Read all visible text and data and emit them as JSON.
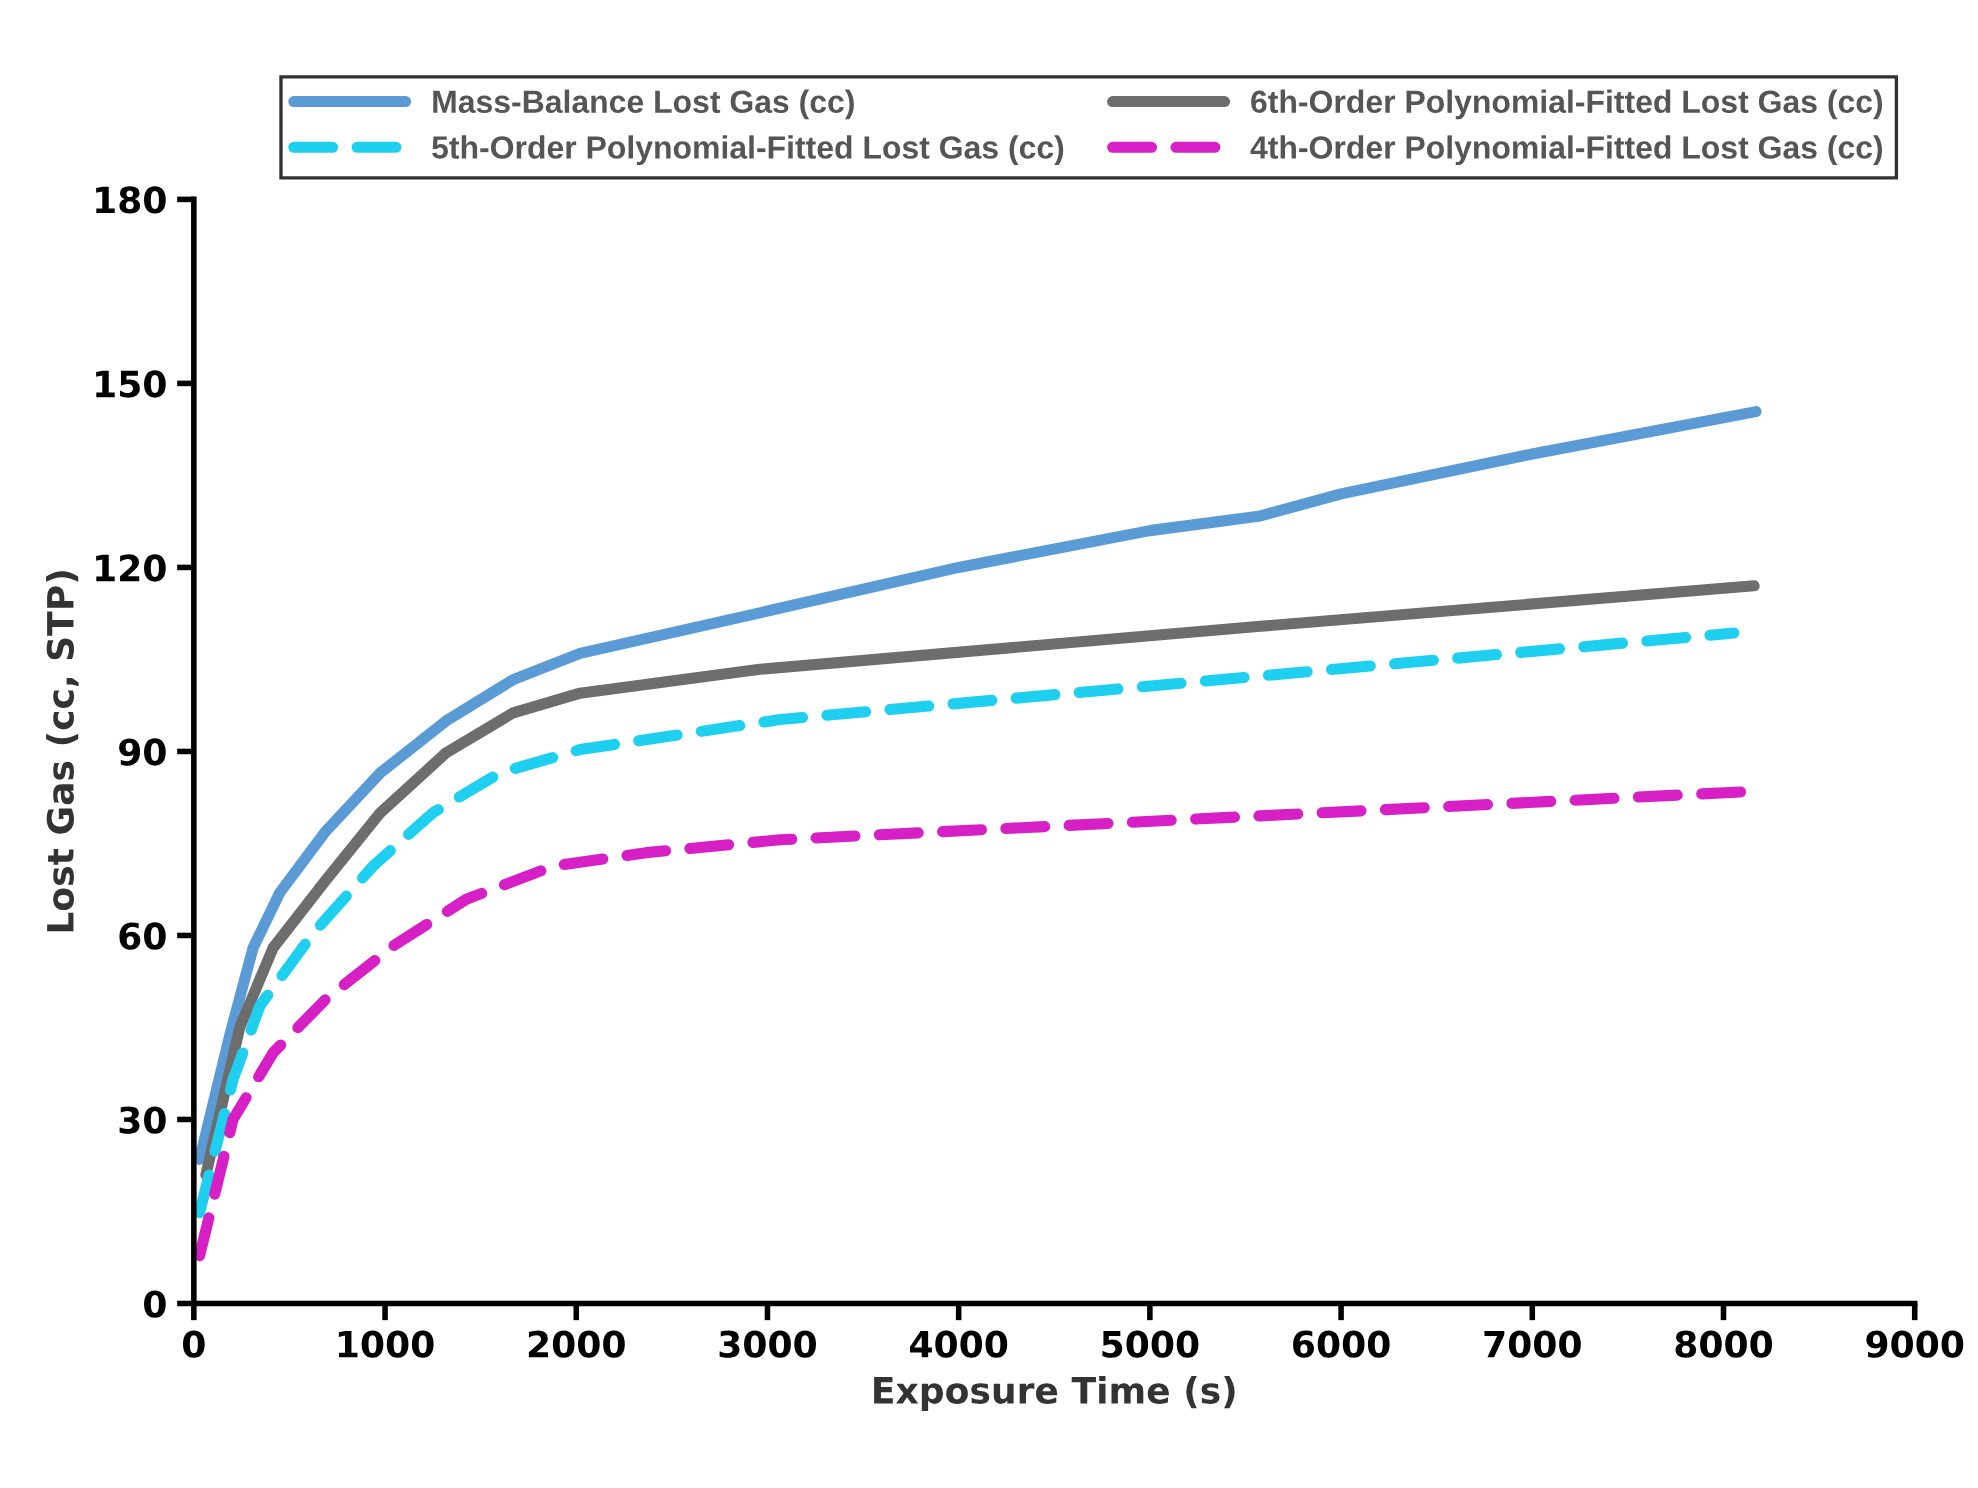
{
  "chart_data": {
    "type": "line",
    "xlabel": "Exposure Time (s)",
    "ylabel": "Lost Gas (cc, STP)",
    "xlim": [
      0,
      9000
    ],
    "xticks": [
      0,
      1000,
      2000,
      3000,
      4000,
      5000,
      6000,
      7000,
      8000,
      9000
    ],
    "ylim": [
      0,
      180
    ],
    "yticks": [
      0,
      30,
      60,
      90,
      120,
      150,
      180
    ],
    "grid": false,
    "legend": "top",
    "marker": "none",
    "series": [
      {
        "name": "Mass-Balance Lost Gas (cc)",
        "color": "#5b9bd5",
        "line_style": "solid",
        "x": [
          30,
          190,
          310,
          450,
          690,
          975,
          1320,
          1670,
          2020,
          2960,
          4000,
          5000,
          5578,
          6000,
          7000,
          8170
        ],
        "values": [
          23.5,
          44,
          58,
          67,
          77,
          86.5,
          95,
          101.7,
          106,
          112.6,
          120,
          126,
          128.4,
          132,
          138.5,
          145.4
        ]
      },
      {
        "name": "6th-Order Polynomial-Fitted Lost Gas (cc)",
        "color": "#6d6d6d",
        "line_style": "solid",
        "x": [
          63,
          240,
          415,
          690,
          975,
          1320,
          1670,
          2020,
          2960,
          5578,
          8160
        ],
        "values": [
          21,
          45,
          58,
          69,
          80,
          89.8,
          96.3,
          99.5,
          103.4,
          110.4,
          117
        ]
      },
      {
        "name": "5th-Order Polynomial-Fitted Lost Gas (cc)",
        "color": "#1fcff0",
        "line_style": "dashed",
        "x": [
          30,
          205,
          345,
          625,
          940,
          1250,
          1600,
          2020,
          3066,
          5578,
          8054
        ],
        "values": [
          14.8,
          36.5,
          48.5,
          60.4,
          71.4,
          80,
          86.5,
          90.3,
          95.2,
          102.3,
          109.3
        ]
      },
      {
        "name": "4th-Order Polynomial-Fitted Lost Gas (cc)",
        "color": "#d61fc4",
        "line_style": "dashed",
        "x": [
          30,
          205,
          415,
          690,
          1043,
          1425,
          1880,
          2367,
          3066,
          5578,
          8160
        ],
        "values": [
          7.8,
          30,
          40.9,
          49.6,
          58.3,
          65.9,
          71.3,
          73.5,
          75.6,
          79.5,
          83.5
        ]
      }
    ]
  }
}
